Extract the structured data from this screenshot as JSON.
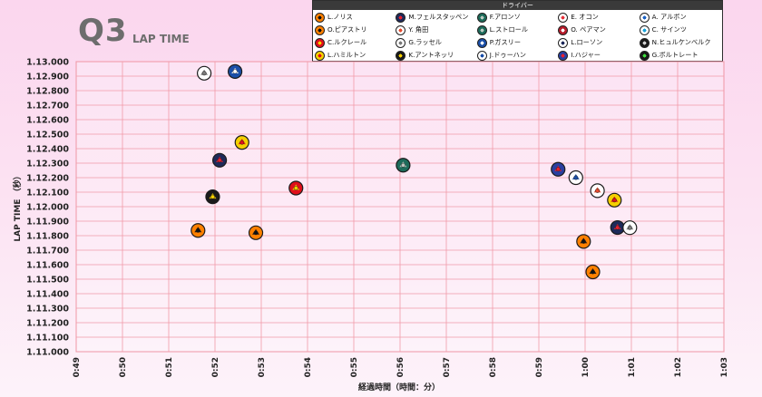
{
  "title": "Q3",
  "subtitle": "LAP TIME",
  "legend_title": "ドライバー",
  "drivers": [
    {
      "key": "NOR",
      "name": "L.ノリス",
      "color": "#ff8000",
      "accent": "#111111",
      "icon": "papaya-icon"
    },
    {
      "key": "VER",
      "name": "M.フェルスタッペン",
      "color": "#1e2a5a",
      "accent": "#e5202f",
      "icon": "bull-icon"
    },
    {
      "key": "ALO",
      "name": "F.アロンソ",
      "color": "#1d6b5a",
      "accent": "#b9c8c0",
      "icon": "green-team-icon"
    },
    {
      "key": "OCO",
      "name": "E. オコン",
      "color": "#ffffff",
      "accent": "#e8343c",
      "icon": "pink-team-icon"
    },
    {
      "key": "ALB",
      "name": "A. アルボン",
      "color": "#ffffff",
      "accent": "#1b63c6",
      "icon": "blue-w-icon"
    },
    {
      "key": "PIA",
      "name": "O.ピアストリ",
      "color": "#ff8000",
      "accent": "#111111",
      "icon": "papaya-icon"
    },
    {
      "key": "TSU",
      "name": "Y. 角田",
      "color": "#ffffff",
      "accent": "#e54b2e",
      "icon": "bull-icon"
    },
    {
      "key": "STR",
      "name": "L.ストロール",
      "color": "#1d6b5a",
      "accent": "#b9c8c0",
      "icon": "green-team-icon"
    },
    {
      "key": "PER",
      "name": "O. ペアマン",
      "color": "#b81d2c",
      "accent": "#ffffff",
      "icon": "haas-icon"
    },
    {
      "key": "SAI",
      "name": "C. サインツ",
      "color": "#ffffff",
      "accent": "#19a3d8",
      "icon": "blue-w-icon"
    },
    {
      "key": "LEC",
      "name": "C.ルクレール",
      "color": "#e0101b",
      "accent": "#f5d000",
      "icon": "prancing-horse-icon"
    },
    {
      "key": "RUS",
      "name": "G.ラッセル",
      "color": "#ffffff",
      "accent": "#7a7a7a",
      "icon": "star-icon"
    },
    {
      "key": "GAS",
      "name": "P.ガスリー",
      "color": "#1b4fa8",
      "accent": "#ffffff",
      "icon": "alpine-icon"
    },
    {
      "key": "LAW",
      "name": "L.ローソン",
      "color": "#ffffff",
      "accent": "#1e2a5a",
      "icon": "bull-icon"
    },
    {
      "key": "HUL",
      "name": "N.ヒュルケンベルク",
      "color": "#1a1a1a",
      "accent": "#d0d0d0",
      "icon": "haas-icon"
    },
    {
      "key": "HAM",
      "name": "L.ハミルトン",
      "color": "#f5d000",
      "accent": "#e0101b",
      "icon": "prancing-horse-icon"
    },
    {
      "key": "ANT",
      "name": "K.アントネッリ",
      "color": "#1a1a1a",
      "accent": "#f5d000",
      "icon": "star-icon"
    },
    {
      "key": "DOO",
      "name": "J.ドゥーハン",
      "color": "#ffffff",
      "accent": "#1b4fa8",
      "icon": "alpine-icon"
    },
    {
      "key": "HAD",
      "name": "I.ハジャー",
      "color": "#2a3fa0",
      "accent": "#e5202f",
      "icon": "bull-icon"
    },
    {
      "key": "BOR",
      "name": "G.ボルトレート",
      "color": "#1a1a1a",
      "accent": "#3ddc3d",
      "icon": "sauber-icon"
    }
  ],
  "chart_data": {
    "type": "scatter",
    "xlabel": "経過時間（時間：分）",
    "ylabel": "LAP TIME （秒）",
    "x_ticks": [
      "0:49",
      "0:50",
      "0:51",
      "0:52",
      "0:53",
      "0:54",
      "0:55",
      "0:56",
      "0:57",
      "0:58",
      "0:59",
      "1:00",
      "1:01",
      "1:02",
      "1:03"
    ],
    "xlim": [
      "0:49",
      "1:03"
    ],
    "ylim": [
      71.0,
      73.0
    ],
    "y_ticks": [
      "1.13.000",
      "1.12.900",
      "1.12.800",
      "1.12.700",
      "1.12.600",
      "1.12.500",
      "1.12.400",
      "1.12.300",
      "1.12.200",
      "1.12.100",
      "1.12.000",
      "1.11.900",
      "1.11.800",
      "1.11.700",
      "1.11.600",
      "1.11.500",
      "1.11.400",
      "1.11.300",
      "1.11.200",
      "1.11.100",
      "1.11.000"
    ],
    "points": [
      {
        "driver": "RUS",
        "x": "0:51:46",
        "y": 72.92
      },
      {
        "driver": "GAS",
        "x": "0:52:26",
        "y": 72.932
      },
      {
        "driver": "HAM",
        "x": "0:52:35",
        "y": 72.443
      },
      {
        "driver": "VER",
        "x": "0:52:06",
        "y": 72.32
      },
      {
        "driver": "LEC",
        "x": "0:53:45",
        "y": 72.128
      },
      {
        "driver": "ANT",
        "x": "0:51:57",
        "y": 72.068
      },
      {
        "driver": "PIA",
        "x": "0:51:38",
        "y": 71.836
      },
      {
        "driver": "NOR",
        "x": "0:52:53",
        "y": 71.82
      },
      {
        "driver": "STR",
        "x": "0:56:04",
        "y": 72.286
      },
      {
        "driver": "HAD",
        "x": "0:59:25",
        "y": 72.258
      },
      {
        "driver": "DOO",
        "x": "0:59:48",
        "y": 72.2
      },
      {
        "driver": "TSU",
        "x": "1:00:16",
        "y": 72.11
      },
      {
        "driver": "HAM",
        "x": "1:00:38",
        "y": 72.045
      },
      {
        "driver": "NOR",
        "x": "0:59:58",
        "y": 71.76
      },
      {
        "driver": "VER",
        "x": "1:00:42",
        "y": 71.856
      },
      {
        "driver": "RUS",
        "x": "1:00:58",
        "y": 71.855
      },
      {
        "driver": "PIA",
        "x": "1:00:10",
        "y": 71.55
      }
    ]
  }
}
